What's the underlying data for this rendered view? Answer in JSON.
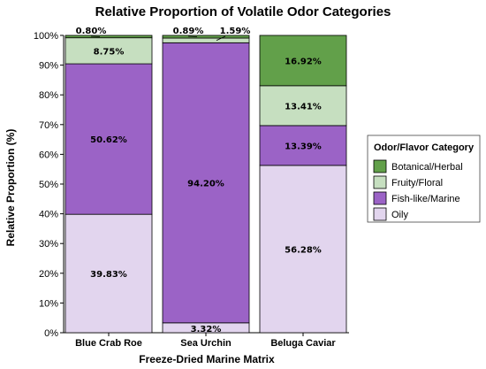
{
  "chart_data": {
    "type": "bar",
    "stacked": true,
    "title": "Relative Proportion of Volatile Odor Categories",
    "xlabel": "Freeze-Dried Marine Matrix",
    "ylabel": "Relative Proportion (%)",
    "ylim": [
      0,
      100
    ],
    "yticks": [
      "0%",
      "10%",
      "20%",
      "30%",
      "40%",
      "50%",
      "60%",
      "70%",
      "80%",
      "90%",
      "100%"
    ],
    "categories": [
      "Blue Crab Roe",
      "Sea Urchin",
      "Beluga Caviar"
    ],
    "legend_title": "Odor/Flavor Category",
    "legend_position": "right",
    "grid": false,
    "series": [
      {
        "name": "Oily",
        "color": "#e2d5ee",
        "values": [
          39.83,
          3.32,
          56.28
        ],
        "labels": [
          "39.83%",
          "3.32%",
          "56.28%"
        ]
      },
      {
        "name": "Fish-like/Marine",
        "color": "#9b63c6",
        "values": [
          50.62,
          94.2,
          13.39
        ],
        "labels": [
          "50.62%",
          "94.20%",
          "13.39%"
        ]
      },
      {
        "name": "Fruity/Floral",
        "color": "#c6dfc0",
        "values": [
          8.75,
          1.59,
          13.41
        ],
        "labels": [
          "8.75%",
          "1.59%",
          "13.41%"
        ]
      },
      {
        "name": "Botanical/Herbal",
        "color": "#62a04a",
        "values": [
          0.8,
          0.89,
          16.92
        ],
        "labels": [
          "0.80%",
          "0.89%",
          "16.92%"
        ]
      }
    ],
    "legend_order": [
      "Botanical/Herbal",
      "Fruity/Floral",
      "Fish-like/Marine",
      "Oily"
    ]
  }
}
